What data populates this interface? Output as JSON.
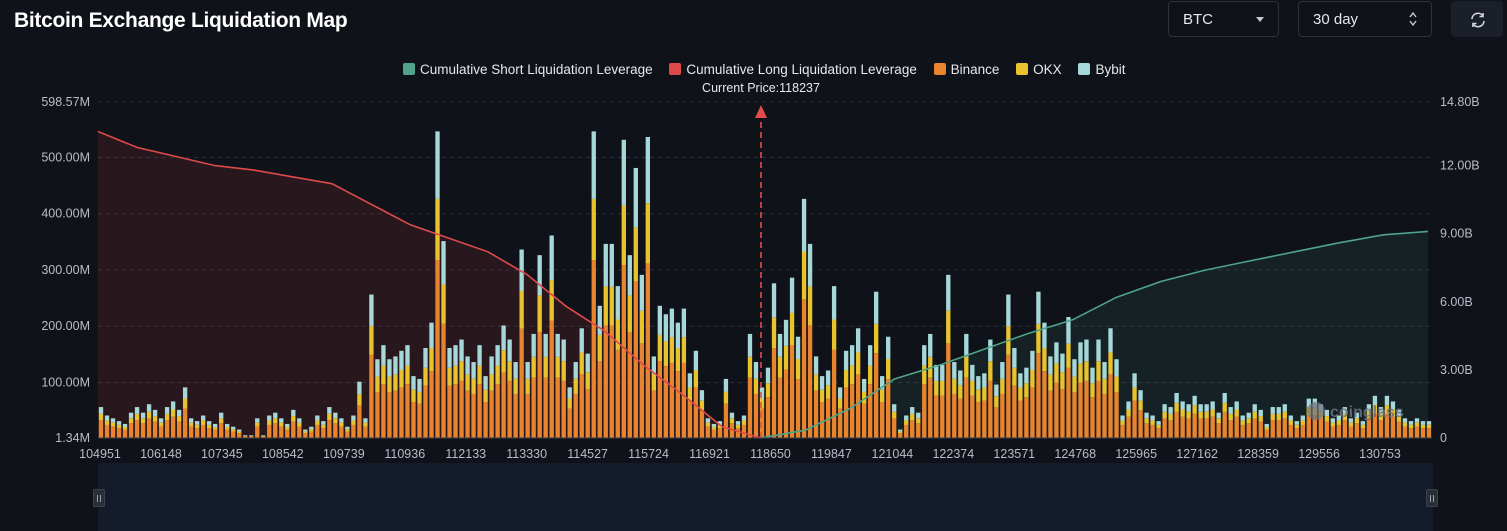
{
  "header": {
    "title": "Bitcoin Exchange Liquidation Map",
    "coin_select": "BTC",
    "range_select": "30 day"
  },
  "colors": {
    "short_cum": "#4fa38a",
    "long_cum": "#dd4a4a",
    "binance": "#e8842e",
    "okx": "#e8c32e",
    "bybit": "#a6d8da"
  },
  "chart_data": {
    "type": "bar",
    "title": "Bitcoin Exchange Liquidation Map",
    "current_price_label": "Current Price:118237",
    "current_price": 118237,
    "watermark": "coinglass",
    "legend": [
      {
        "name": "Cumulative Short Liquidation Leverage",
        "color": "#4fa38a"
      },
      {
        "name": "Cumulative Long Liquidation Leverage",
        "color": "#dd4a4a"
      },
      {
        "name": "Binance",
        "color": "#e8842e"
      },
      {
        "name": "OKX",
        "color": "#e8c32e"
      },
      {
        "name": "Bybit",
        "color": "#a6d8da"
      }
    ],
    "x_ticks": [
      "104951",
      "106148",
      "107345",
      "108542",
      "109739",
      "110936",
      "112133",
      "113330",
      "114527",
      "115724",
      "116921",
      "118650",
      "119847",
      "121044",
      "122374",
      "123571",
      "124768",
      "125965",
      "127162",
      "128359",
      "129556",
      "130753"
    ],
    "y_left_ticks": [
      "598.57M",
      "500.00M",
      "400.00M",
      "300.00M",
      "200.00M",
      "100.00M",
      "1.34M"
    ],
    "y_right_ticks": [
      "14.80B",
      "12.00B",
      "9.00B",
      "6.00B",
      "3.00B",
      "0"
    ],
    "ylim_left_M": [
      1.34,
      598.57
    ],
    "ylim_right_B": [
      0,
      14.8
    ],
    "price_range": [
      104951,
      131200
    ],
    "bar_totals_M": [
      55,
      40,
      35,
      30,
      25,
      45,
      55,
      45,
      60,
      50,
      35,
      55,
      65,
      50,
      90,
      35,
      30,
      40,
      30,
      25,
      45,
      25,
      20,
      15,
      5,
      5,
      35,
      5,
      40,
      45,
      35,
      25,
      50,
      35,
      15,
      20,
      40,
      30,
      55,
      45,
      35,
      20,
      40,
      100,
      35,
      255,
      140,
      165,
      140,
      145,
      155,
      165,
      110,
      105,
      160,
      205,
      545,
      350,
      160,
      165,
      175,
      145,
      135,
      165,
      110,
      145,
      165,
      200,
      175,
      135,
      335,
      135,
      185,
      325,
      185,
      360,
      185,
      175,
      90,
      135,
      195,
      150,
      545,
      235,
      345,
      345,
      270,
      530,
      325,
      480,
      290,
      535,
      145,
      235,
      220,
      230,
      205,
      230,
      115,
      155,
      85,
      35,
      25,
      30,
      105,
      45,
      30,
      40,
      185,
      135,
      90,
      125,
      275,
      185,
      210,
      285,
      180,
      425,
      345,
      145,
      110,
      120,
      270,
      90,
      155,
      165,
      195,
      105,
      165,
      260,
      110,
      180,
      60,
      15,
      40,
      55,
      45,
      165,
      185,
      130,
      130,
      290,
      135,
      120,
      185,
      130,
      110,
      115,
      175,
      95,
      135,
      255,
      160,
      115,
      125,
      155,
      260,
      205,
      145,
      170,
      150,
      215,
      140,
      170,
      175,
      125,
      175,
      135,
      195,
      140,
      40,
      65,
      115,
      85,
      45,
      40,
      30,
      60,
      55,
      80,
      65,
      60,
      75,
      60,
      60,
      65,
      45,
      80,
      55,
      65,
      40,
      45,
      60,
      50,
      25,
      55,
      55,
      60,
      40,
      30,
      40,
      70,
      70,
      60,
      50,
      35,
      40,
      55,
      35,
      45,
      30,
      60,
      75,
      55,
      75,
      65,
      50,
      35,
      30,
      35,
      30,
      30
    ],
    "long_cum_B": [
      13.5,
      12.8,
      12.4,
      12.0,
      11.8,
      11.5,
      11.2,
      10.3,
      9.4,
      8.8,
      8.2,
      7.2,
      5.8,
      4.7,
      3.2,
      1.9,
      0.5,
      0.0
    ],
    "short_cum_B": [
      0.0,
      0.35,
      1.3,
      2.6,
      3.2,
      3.9,
      4.6,
      5.2,
      6.2,
      6.9,
      7.4,
      7.8,
      8.2,
      8.6,
      8.95,
      9.1
    ]
  }
}
